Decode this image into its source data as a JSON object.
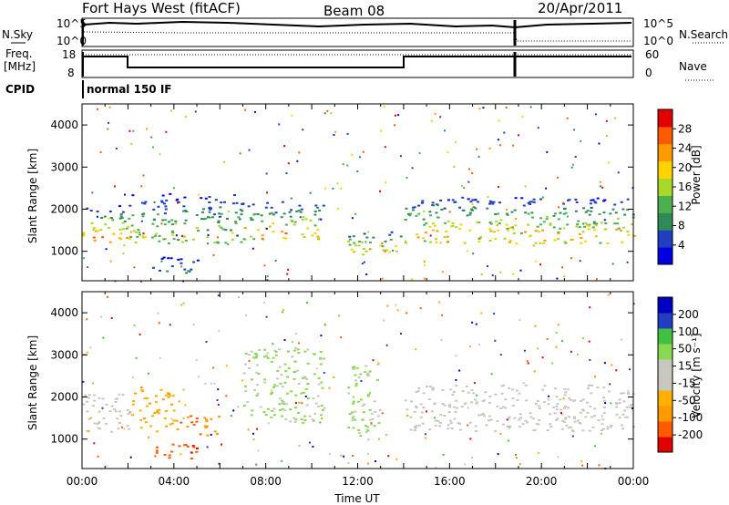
{
  "header": {
    "radar": "Fort Hays West (fitACF)",
    "beam": "Beam 08",
    "date": "20/Apr/2011"
  },
  "noise_panel": {
    "left_label": "N.Sky",
    "right_label": "N.Search",
    "left_ticks": [
      "10^5",
      "10^0"
    ],
    "right_ticks": [
      "10^5",
      "10^0"
    ]
  },
  "freq_panel": {
    "left_label_1": "Freq.",
    "left_label_2": "[MHz]",
    "right_label": "Nave",
    "left_ticks": [
      "18",
      "8"
    ],
    "right_ticks": [
      "60",
      "0"
    ]
  },
  "cpid": {
    "label": "CPID",
    "program": "normal 150 IF"
  },
  "colors": {
    "power_scale": [
      "#0000e0",
      "#1f3fc0",
      "#2e8b57",
      "#4caf50",
      "#a8d828",
      "#ffd200",
      "#ff9a00",
      "#ff5a00",
      "#e00000"
    ],
    "velocity_scale": [
      "#e00000",
      "#ff5a00",
      "#ff9a00",
      "#ffb000",
      "#c8c8c0",
      "#c8c8c0",
      "#88d850",
      "#44c040",
      "#1f3fc0",
      "#0000c0"
    ]
  },
  "chart_data": [
    {
      "type": "heatmap",
      "panel": "power",
      "ylabel": "Slant Range [km]",
      "y_ticks": [
        "1000",
        "2000",
        "3000",
        "4000"
      ],
      "ylim": [
        300,
        4500
      ],
      "xlim": [
        0,
        24
      ],
      "colorbar": {
        "label": "Power [dB]",
        "ticks": [
          "4",
          "8",
          "12",
          "16",
          "20",
          "24",
          "28"
        ],
        "range": [
          0,
          32
        ]
      },
      "bands": [
        {
          "t": [
            0,
            2
          ],
          "r": [
            1150,
            2100
          ],
          "v_peak": 27
        },
        {
          "t": [
            2,
            7
          ],
          "r": [
            1200,
            2400
          ],
          "v_peak": 18
        },
        {
          "t": [
            3,
            5
          ],
          "r": [
            500,
            900
          ],
          "v_peak": 10
        },
        {
          "t": [
            7,
            10.5
          ],
          "r": [
            1300,
            2200
          ],
          "v_peak": 24
        },
        {
          "t": [
            11.5,
            14
          ],
          "r": [
            900,
            1500
          ],
          "v_peak": 26
        },
        {
          "t": [
            14,
            24
          ],
          "r": [
            1200,
            2300
          ],
          "v_peak": 24
        }
      ]
    },
    {
      "type": "heatmap",
      "panel": "velocity",
      "ylabel": "Slant Range [km]",
      "xlabel": "Time UT",
      "y_ticks": [
        "1000",
        "2000",
        "3000",
        "4000"
      ],
      "x_ticks": [
        "00:00",
        "04:00",
        "08:00",
        "12:00",
        "16:00",
        "20:00",
        "00:00"
      ],
      "ylim": [
        300,
        4500
      ],
      "xlim": [
        0,
        24
      ],
      "colorbar": {
        "label": "Velocity [m s⁻¹]",
        "ticks": [
          "200",
          "100",
          "50",
          "15",
          "-15",
          "-50",
          "-100",
          "-200"
        ],
        "range": [
          -250,
          250
        ]
      },
      "bands": [
        {
          "t": [
            0,
            2
          ],
          "r": [
            1150,
            2100
          ],
          "v": 0
        },
        {
          "t": [
            2,
            4
          ],
          "r": [
            1200,
            2200
          ],
          "v": -80
        },
        {
          "t": [
            3,
            5
          ],
          "r": [
            500,
            900
          ],
          "v": -180
        },
        {
          "t": [
            4,
            6
          ],
          "r": [
            1100,
            1600
          ],
          "v": -140
        },
        {
          "t": [
            7,
            10.5
          ],
          "r": [
            1400,
            3200
          ],
          "v": 60
        },
        {
          "t": [
            11.5,
            13
          ],
          "r": [
            1000,
            2800
          ],
          "v": 50
        },
        {
          "t": [
            14,
            24
          ],
          "r": [
            1200,
            2300
          ],
          "v": 0
        }
      ]
    }
  ]
}
